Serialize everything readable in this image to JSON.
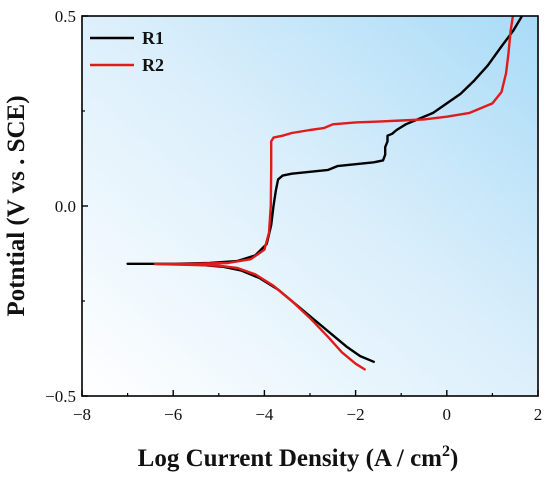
{
  "chart_data": {
    "type": "line",
    "title": "",
    "xlabel": "Log Current Density (A / cm",
    "xlabel_sup": "2",
    "xlabel_end": ")",
    "ylabel": "Potntial (V vs . SCE)",
    "xlim": [
      -8,
      2
    ],
    "ylim": [
      -0.5,
      0.5
    ],
    "xticks": [
      -8,
      -6,
      -4,
      -2,
      0,
      2
    ],
    "xtick_labels": [
      "−8",
      "−6",
      "−4",
      "−2",
      "0",
      "2"
    ],
    "yticks": [
      -0.5,
      0.0,
      0.5
    ],
    "ytick_labels": [
      "−0.5",
      "0.0",
      "0.5"
    ],
    "grid": false,
    "legend_position": "top-left",
    "background": "gradient-light-blue",
    "series": [
      {
        "name": "R1",
        "color": "#000000",
        "points": [
          [
            1.65,
            0.5
          ],
          [
            1.45,
            0.46
          ],
          [
            1.2,
            0.42
          ],
          [
            0.9,
            0.37
          ],
          [
            0.6,
            0.33
          ],
          [
            0.3,
            0.295
          ],
          [
            0.0,
            0.27
          ],
          [
            -0.3,
            0.245
          ],
          [
            -0.6,
            0.23
          ],
          [
            -0.9,
            0.215
          ],
          [
            -1.1,
            0.2
          ],
          [
            -1.2,
            0.19
          ],
          [
            -1.3,
            0.185
          ],
          [
            -1.3,
            0.17
          ],
          [
            -1.35,
            0.155
          ],
          [
            -1.35,
            0.135
          ],
          [
            -1.4,
            0.12
          ],
          [
            -1.6,
            0.115
          ],
          [
            -2.0,
            0.11
          ],
          [
            -2.4,
            0.105
          ],
          [
            -2.6,
            0.095
          ],
          [
            -3.0,
            0.09
          ],
          [
            -3.4,
            0.085
          ],
          [
            -3.6,
            0.08
          ],
          [
            -3.7,
            0.07
          ],
          [
            -3.75,
            0.04
          ],
          [
            -3.8,
            0.0
          ],
          [
            -3.85,
            -0.05
          ],
          [
            -3.95,
            -0.1
          ],
          [
            -4.2,
            -0.13
          ],
          [
            -4.6,
            -0.145
          ],
          [
            -5.2,
            -0.15
          ],
          [
            -6.0,
            -0.152
          ],
          [
            -6.5,
            -0.152
          ],
          [
            -7.0,
            -0.152
          ],
          [
            -6.5,
            -0.152
          ],
          [
            -6.0,
            -0.153
          ],
          [
            -5.4,
            -0.155
          ],
          [
            -4.9,
            -0.16
          ],
          [
            -4.5,
            -0.17
          ],
          [
            -4.1,
            -0.19
          ],
          [
            -3.7,
            -0.22
          ],
          [
            -3.3,
            -0.26
          ],
          [
            -2.9,
            -0.3
          ],
          [
            -2.5,
            -0.34
          ],
          [
            -2.2,
            -0.37
          ],
          [
            -1.9,
            -0.395
          ],
          [
            -1.6,
            -0.41
          ]
        ]
      },
      {
        "name": "R2",
        "color": "#e01b1b",
        "points": [
          [
            1.45,
            0.5
          ],
          [
            1.4,
            0.46
          ],
          [
            1.35,
            0.4
          ],
          [
            1.3,
            0.35
          ],
          [
            1.2,
            0.3
          ],
          [
            1.0,
            0.27
          ],
          [
            0.5,
            0.245
          ],
          [
            0.0,
            0.235
          ],
          [
            -0.5,
            0.228
          ],
          [
            -1.0,
            0.225
          ],
          [
            -1.5,
            0.222
          ],
          [
            -2.0,
            0.22
          ],
          [
            -2.5,
            0.215
          ],
          [
            -2.7,
            0.205
          ],
          [
            -3.0,
            0.2
          ],
          [
            -3.4,
            0.192
          ],
          [
            -3.6,
            0.185
          ],
          [
            -3.8,
            0.18
          ],
          [
            -3.85,
            0.17
          ],
          [
            -3.85,
            0.1
          ],
          [
            -3.86,
            0.0
          ],
          [
            -3.9,
            -0.07
          ],
          [
            -4.0,
            -0.115
          ],
          [
            -4.3,
            -0.14
          ],
          [
            -4.8,
            -0.15
          ],
          [
            -5.6,
            -0.152
          ],
          [
            -6.4,
            -0.153
          ],
          [
            -5.6,
            -0.155
          ],
          [
            -5.0,
            -0.157
          ],
          [
            -4.6,
            -0.163
          ],
          [
            -4.2,
            -0.18
          ],
          [
            -3.8,
            -0.21
          ],
          [
            -3.4,
            -0.25
          ],
          [
            -3.0,
            -0.295
          ],
          [
            -2.6,
            -0.345
          ],
          [
            -2.3,
            -0.385
          ],
          [
            -2.0,
            -0.415
          ],
          [
            -1.8,
            -0.43
          ]
        ]
      }
    ]
  }
}
